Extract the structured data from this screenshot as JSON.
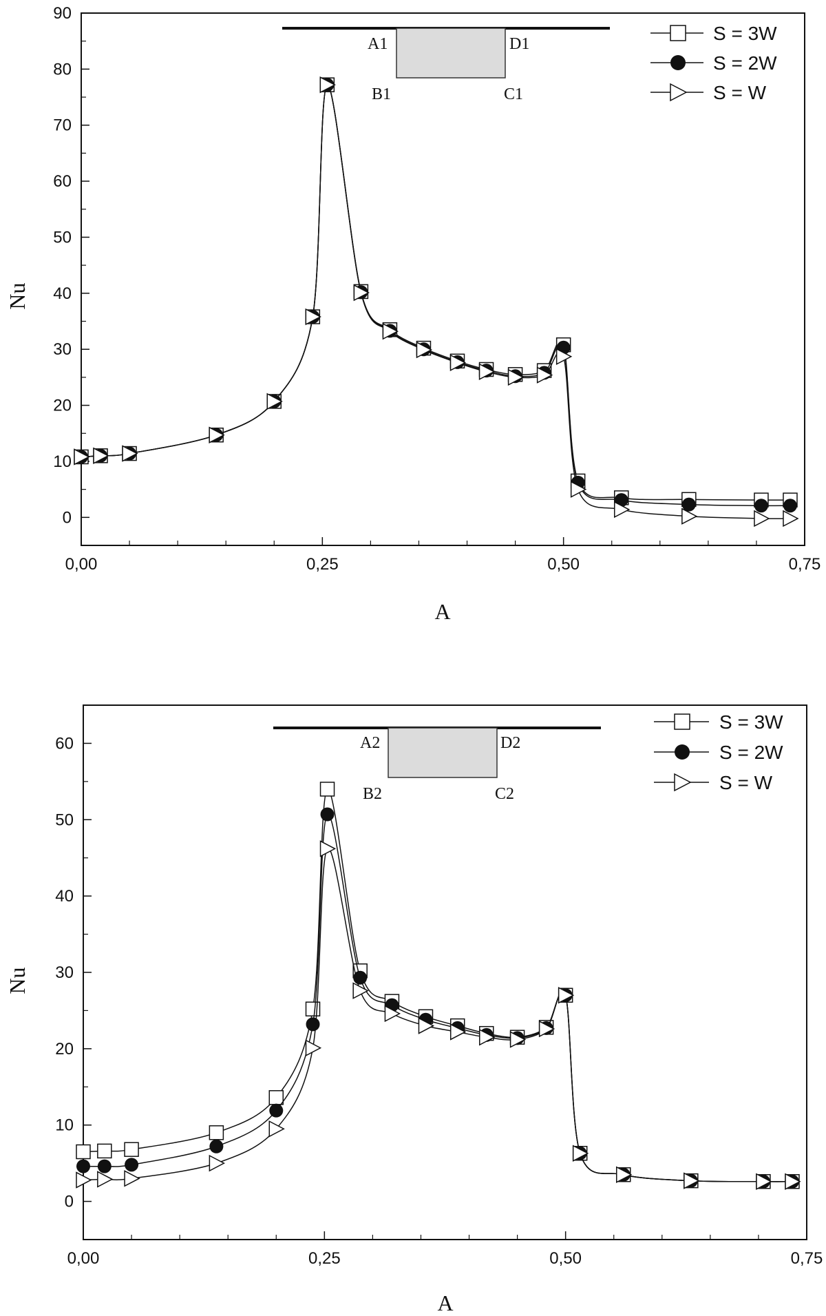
{
  "chart_data": [
    {
      "type": "line",
      "xlabel": "A",
      "ylabel": "Nu",
      "xlim": [
        0,
        0.75
      ],
      "ylim": [
        -5,
        90
      ],
      "xticks": [
        {
          "v": 0,
          "label": "0,00"
        },
        {
          "v": 0.25,
          "label": "0,25"
        },
        {
          "v": 0.5,
          "label": "0,50"
        },
        {
          "v": 0.75,
          "label": "0,75"
        }
      ],
      "yticks": [
        {
          "v": 0,
          "label": "0"
        },
        {
          "v": 10,
          "label": "10"
        },
        {
          "v": 20,
          "label": "20"
        },
        {
          "v": 30,
          "label": "30"
        },
        {
          "v": 40,
          "label": "40"
        },
        {
          "v": 50,
          "label": "50"
        },
        {
          "v": 60,
          "label": "60"
        },
        {
          "v": 70,
          "label": "70"
        },
        {
          "v": 80,
          "label": "80"
        },
        {
          "v": 90,
          "label": "90"
        }
      ],
      "grid": false,
      "legend_position": "top-right",
      "inset": {
        "labels": [
          "A1",
          "D1",
          "B1",
          "C1"
        ]
      },
      "series": [
        {
          "name": "S = 3W",
          "marker": "square",
          "x": [
            0,
            0.02,
            0.05,
            0.14,
            0.2,
            0.24,
            0.255,
            0.29,
            0.32,
            0.355,
            0.39,
            0.42,
            0.45,
            0.48,
            0.5,
            0.515,
            0.56,
            0.63,
            0.705,
            0.735
          ],
          "y": [
            10.8,
            11,
            11.4,
            14.7,
            20.7,
            35.8,
            77.2,
            40.3,
            33.5,
            30.2,
            27.9,
            26.4,
            25.5,
            26.2,
            30.8,
            6.5,
            3.5,
            3.2,
            3.1,
            3.1
          ]
        },
        {
          "name": "S = 2W",
          "marker": "circle",
          "x": [
            0,
            0.02,
            0.05,
            0.14,
            0.2,
            0.24,
            0.255,
            0.29,
            0.32,
            0.355,
            0.39,
            0.42,
            0.45,
            0.48,
            0.5,
            0.515,
            0.56,
            0.63,
            0.705,
            0.735
          ],
          "y": [
            10.8,
            11,
            11.4,
            14.7,
            20.7,
            35.8,
            77.2,
            40.2,
            33.3,
            30.0,
            27.7,
            26.2,
            25.2,
            25.8,
            30.3,
            6.2,
            3.1,
            2.3,
            2.1,
            2.1
          ]
        },
        {
          "name": "S = W",
          "marker": "triangle-right",
          "x": [
            0,
            0.02,
            0.05,
            0.14,
            0.2,
            0.24,
            0.255,
            0.29,
            0.32,
            0.355,
            0.39,
            0.42,
            0.45,
            0.48,
            0.5,
            0.515,
            0.56,
            0.63,
            0.705,
            0.735
          ],
          "y": [
            10.8,
            11,
            11.4,
            14.7,
            20.7,
            35.8,
            77.2,
            40.1,
            33.2,
            29.9,
            27.6,
            26.0,
            25.0,
            25.4,
            28.7,
            5.0,
            1.4,
            0.2,
            -0.2,
            -0.2
          ]
        }
      ]
    },
    {
      "type": "line",
      "xlabel": "A",
      "ylabel": "Nu",
      "xlim": [
        0,
        0.75
      ],
      "ylim": [
        -5,
        65
      ],
      "xticks": [
        {
          "v": 0,
          "label": "0,00"
        },
        {
          "v": 0.25,
          "label": "0,25"
        },
        {
          "v": 0.5,
          "label": "0,50"
        },
        {
          "v": 0.75,
          "label": "0,75"
        }
      ],
      "yticks": [
        {
          "v": 0,
          "label": "0"
        },
        {
          "v": 10,
          "label": "10"
        },
        {
          "v": 20,
          "label": "20"
        },
        {
          "v": 30,
          "label": "30"
        },
        {
          "v": 40,
          "label": "40"
        },
        {
          "v": 50,
          "label": "50"
        },
        {
          "v": 60,
          "label": "60"
        }
      ],
      "grid": false,
      "legend_position": "top-right",
      "inset": {
        "labels": [
          "A2",
          "D2",
          "B2",
          "C2"
        ]
      },
      "series": [
        {
          "name": "S = 3W",
          "marker": "square",
          "x": [
            0,
            0.022,
            0.05,
            0.138,
            0.2,
            0.238,
            0.253,
            0.287,
            0.32,
            0.355,
            0.388,
            0.418,
            0.45,
            0.48,
            0.5,
            0.515,
            0.56,
            0.63,
            0.705,
            0.735
          ],
          "y": [
            6.5,
            6.6,
            6.8,
            9.0,
            13.6,
            25.2,
            54.0,
            30.2,
            26.2,
            24.2,
            23.0,
            22.0,
            21.5,
            22.8,
            27.0,
            6.3,
            3.5,
            2.7,
            2.6,
            2.6
          ]
        },
        {
          "name": "S = 2W",
          "marker": "circle",
          "x": [
            0,
            0.022,
            0.05,
            0.138,
            0.2,
            0.238,
            0.253,
            0.287,
            0.32,
            0.355,
            0.388,
            0.418,
            0.45,
            0.48,
            0.5,
            0.515,
            0.56,
            0.63,
            0.705,
            0.735
          ],
          "y": [
            4.6,
            4.6,
            4.8,
            7.2,
            11.9,
            23.2,
            50.7,
            29.3,
            25.7,
            23.8,
            22.7,
            21.8,
            21.4,
            22.7,
            27.0,
            6.3,
            3.5,
            2.7,
            2.6,
            2.6
          ]
        },
        {
          "name": "S = W",
          "marker": "triangle-right",
          "x": [
            0,
            0.022,
            0.05,
            0.138,
            0.2,
            0.238,
            0.253,
            0.287,
            0.32,
            0.355,
            0.388,
            0.418,
            0.45,
            0.48,
            0.5,
            0.515,
            0.56,
            0.63,
            0.705,
            0.735
          ],
          "y": [
            2.8,
            2.9,
            3.0,
            5.0,
            9.5,
            20.1,
            46.2,
            27.6,
            24.6,
            23.0,
            22.2,
            21.5,
            21.2,
            22.6,
            27.0,
            6.3,
            3.5,
            2.7,
            2.6,
            2.6
          ]
        }
      ]
    }
  ]
}
